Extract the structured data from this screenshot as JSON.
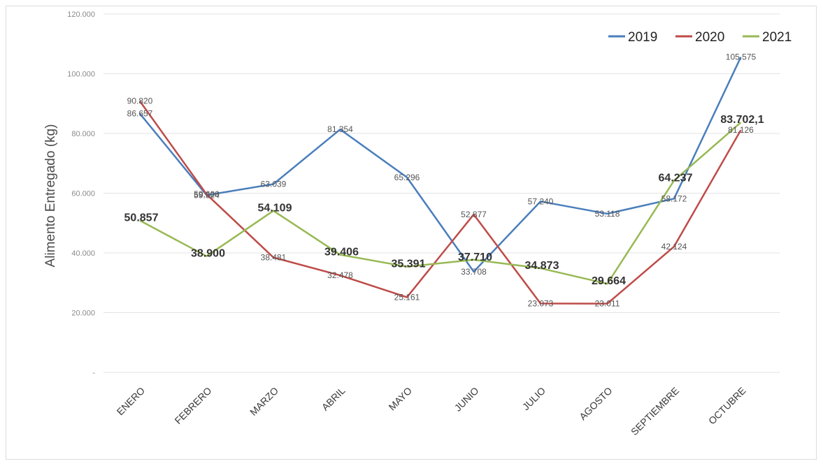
{
  "chart_data": {
    "type": "line",
    "ylabel": "Alimento  Entregado (kg)",
    "ylim": [
      0,
      120000
    ],
    "y_ticks": [
      {
        "value": 0,
        "label": "-"
      },
      {
        "value": 20000,
        "label": "20.000"
      },
      {
        "value": 40000,
        "label": "40.000"
      },
      {
        "value": 60000,
        "label": "60.000"
      },
      {
        "value": 80000,
        "label": "80.000"
      },
      {
        "value": 100000,
        "label": "100.000"
      },
      {
        "value": 120000,
        "label": "120.000"
      }
    ],
    "grid": true,
    "legend_position": "top-right",
    "categories": [
      "ENERO",
      "FEBRERO",
      "MARZO",
      "ABRIL",
      "MAYO",
      "JUNIO",
      "JULIO",
      "AGOSTO",
      "SEPTIEMBRE",
      "OCTUBRE"
    ],
    "series": [
      {
        "name": "2019",
        "color": "#4a7ebb",
        "values": [
          86657,
          59324,
          63039,
          81354,
          65296,
          33708,
          57240,
          53118,
          58172,
          105575
        ],
        "labels": [
          "86.657",
          "59.324",
          "63.039",
          "81.354",
          "65.296",
          "33.708",
          "57.240",
          "53.118",
          "58.172",
          "105.575"
        ]
      },
      {
        "name": "2020",
        "color": "#be4b48",
        "values": [
          90820,
          59600,
          38481,
          32478,
          25161,
          52877,
          23073,
          23011,
          42124,
          81126
        ],
        "labels": [
          "90.820",
          "59.600",
          "38.481",
          "32.478",
          "25.161",
          "52.877",
          "23.073",
          "23.011",
          "42.124",
          "81.126"
        ]
      },
      {
        "name": "2021",
        "color": "#98b954",
        "values": [
          50857,
          38900,
          54109,
          39406,
          35391,
          37710,
          34873,
          29664,
          64237,
          83702.1
        ],
        "labels": [
          "50.857",
          "38.900",
          "54.109",
          "39.406",
          "35.391",
          "37.710",
          "34.873",
          "29.664",
          "64.237",
          "83.702,1"
        ]
      }
    ]
  }
}
